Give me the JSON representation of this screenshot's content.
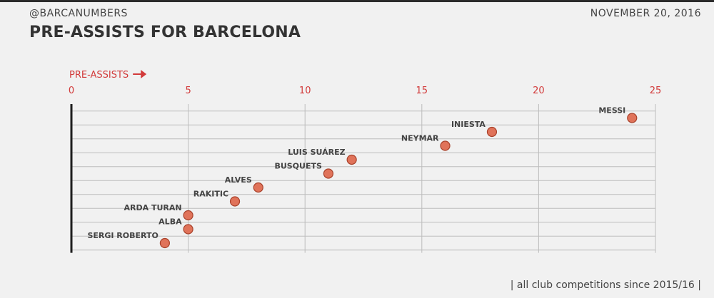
{
  "header": {
    "handle": "@BARCANUMBERS",
    "date": "NOVEMBER 20, 2016",
    "title": "PRE-ASSISTS FOR BARCELONA"
  },
  "footnote": "| all club competitions since 2015/16 |",
  "colors": {
    "point": "#e0735a",
    "accent": "#d23a3a"
  },
  "chart_data": {
    "type": "scatter",
    "title": "PRE-ASSISTS FOR BARCELONA",
    "xlabel": "PRE-ASSISTS",
    "xlim": [
      0,
      25
    ],
    "xticks": [
      0,
      5,
      10,
      15,
      20,
      25
    ],
    "grid": true,
    "points": [
      {
        "name": "MESSI",
        "value": 24
      },
      {
        "name": "INIESTA",
        "value": 18
      },
      {
        "name": "NEYMAR",
        "value": 16
      },
      {
        "name": "LUIS SUÁREZ",
        "value": 12
      },
      {
        "name": "BUSQUETS",
        "value": 11
      },
      {
        "name": "ALVES",
        "value": 8
      },
      {
        "name": "RAKITIC",
        "value": 7
      },
      {
        "name": "ARDA TURAN",
        "value": 5
      },
      {
        "name": "ALBA",
        "value": 5
      },
      {
        "name": "SERGI ROBERTO",
        "value": 4
      }
    ]
  }
}
